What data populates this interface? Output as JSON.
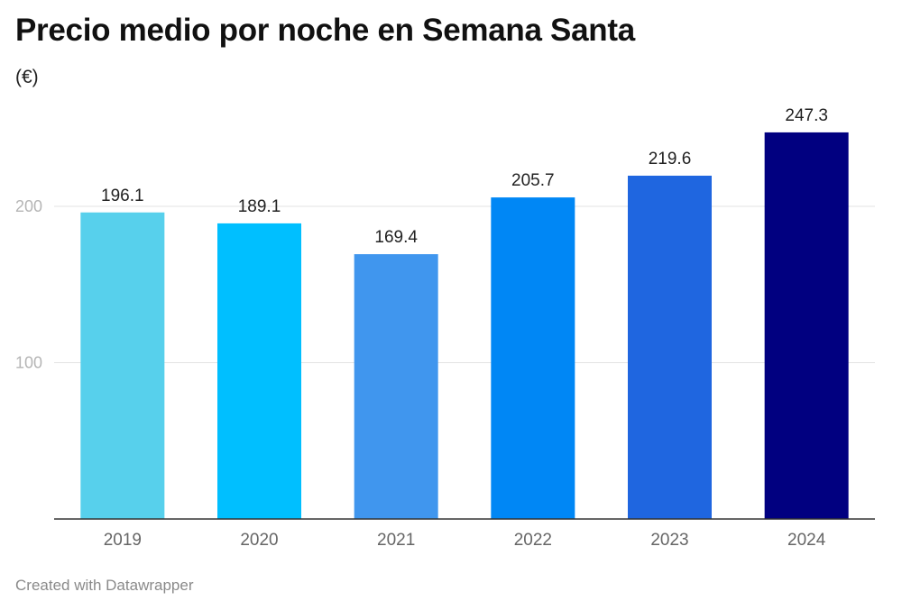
{
  "header": {
    "title": "Precio medio por noche en Semana Santa",
    "subtitle": "(€)"
  },
  "footer": {
    "credit": "Created with Datawrapper"
  },
  "chart_data": {
    "type": "bar",
    "title": "Precio medio por noche en Semana Santa",
    "subtitle": "(€)",
    "xlabel": "",
    "ylabel": "",
    "categories": [
      "2019",
      "2020",
      "2021",
      "2022",
      "2023",
      "2024"
    ],
    "values": [
      196.1,
      189.1,
      169.4,
      205.7,
      219.6,
      247.3
    ],
    "value_labels": [
      "196.1",
      "189.1",
      "169.4",
      "205.7",
      "219.6",
      "247.3"
    ],
    "colors": [
      "#57d0ec",
      "#00bfff",
      "#4096ee",
      "#0087f5",
      "#1f66e0",
      "#010080"
    ],
    "ylim": [
      0,
      250
    ],
    "yticks": [
      100,
      200
    ],
    "ytick_labels": [
      "100",
      "200"
    ],
    "grid": true,
    "legend": "none"
  }
}
